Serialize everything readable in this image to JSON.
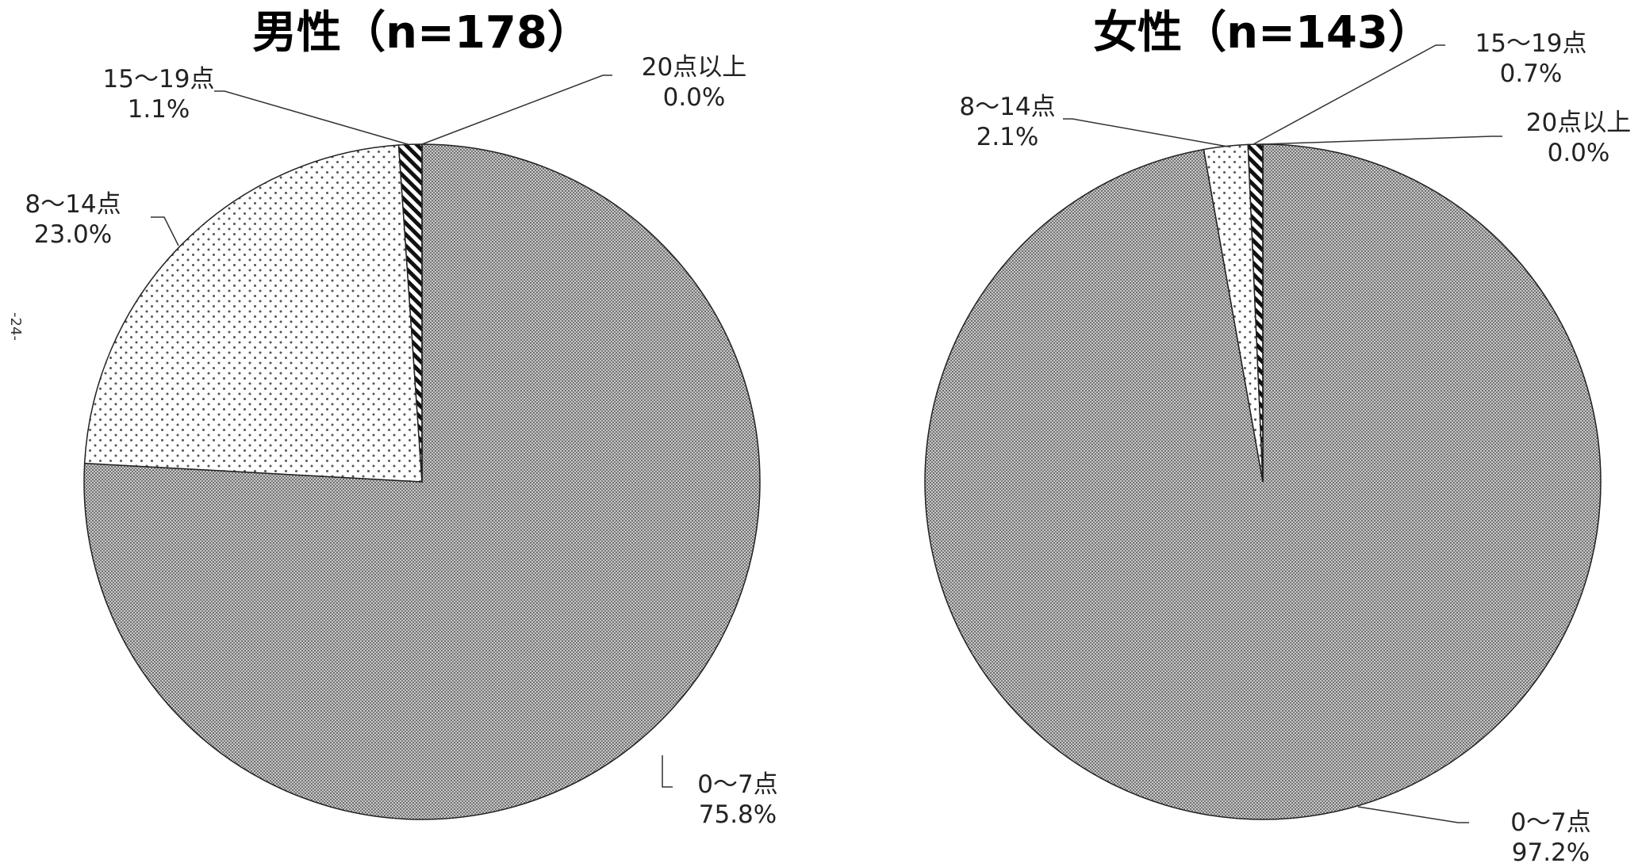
{
  "page_number": "-24-",
  "chart_data": [
    {
      "type": "pie",
      "title": "男性（n=178）",
      "categories": [
        "0～7点",
        "8～14点",
        "15～19点",
        "20点以上"
      ],
      "values": [
        75.8,
        23.0,
        1.1,
        0.0
      ],
      "labels": [
        "75.8%",
        "23.0%",
        "1.1%",
        "0.0%"
      ],
      "legend": "none"
    },
    {
      "type": "pie",
      "title": "女性（n=143）",
      "categories": [
        "0～7点",
        "8～14点",
        "15～19点",
        "20点以上"
      ],
      "values": [
        97.2,
        2.1,
        0.7,
        0.0
      ],
      "labels": [
        "97.2%",
        "2.1%",
        "0.7%",
        "0.0%"
      ],
      "legend": "none"
    }
  ]
}
